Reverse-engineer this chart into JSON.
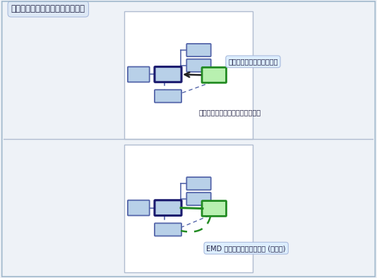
{
  "title": "現有的內嵌樹狀結構和參考關聯性",
  "bg_color": "#eef2f7",
  "panel_bg": "#ffffff",
  "box_fill_top": "#b8d0e8",
  "box_fill_bot": "#a8c4e0",
  "box_edge": "#5566aa",
  "box_bold_edge": "#1a1a6e",
  "green_fill": "#b8f0b0",
  "green_edge": "#228B22",
  "line_color": "#5566aa",
  "label1": "要連接到樹狀結構的新項目",
  "label2": "使用者在現有的目標上置放新項目",
  "label3": "EMD 會判斷要建立的新連結 (和物件)",
  "label_bg": "#ddeeff",
  "label_border": "#aabbdd",
  "arrow_color": "#222222",
  "dashed_blue": "#5566aa",
  "dashed_green": "#228B22"
}
